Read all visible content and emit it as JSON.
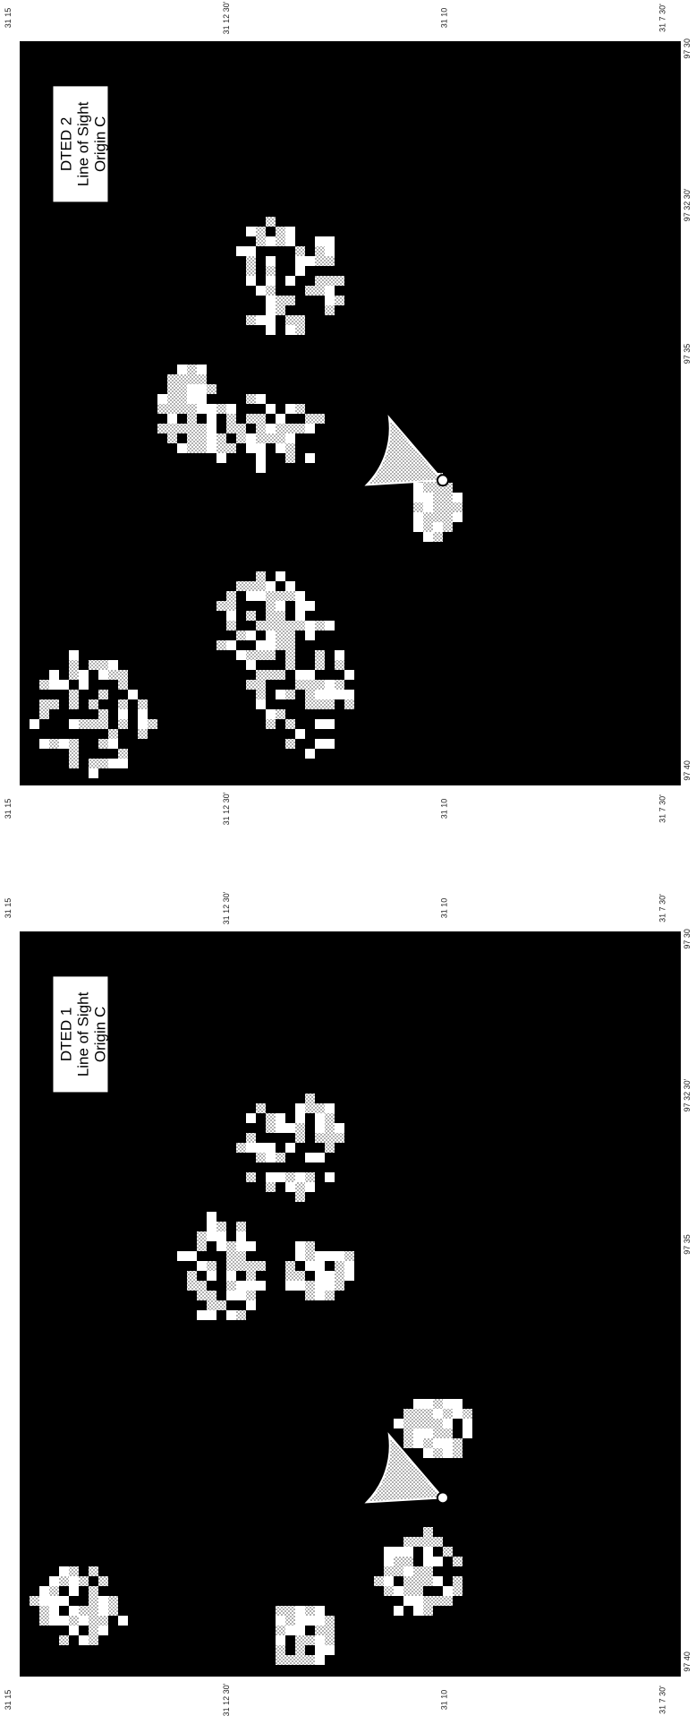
{
  "panels": [
    {
      "label": [
        "DTED 2",
        "Line of Sight",
        "Origin C"
      ],
      "edge_top": [
        "31 15",
        "31 12 30'",
        "31 10",
        "31 7 30'"
      ],
      "edge_right": [
        "97 30",
        "97 32 30'",
        "97 35",
        "97 40"
      ]
    },
    {
      "label": [
        "DTED 1",
        "Line of Sight",
        "Origin C"
      ],
      "edge_top": [
        "31 15",
        "31 12 30'",
        "31 10",
        "31 7 30'"
      ],
      "edge_right": [
        "97 30",
        "97 32 30'",
        "97 35",
        "97 40"
      ]
    }
  ]
}
